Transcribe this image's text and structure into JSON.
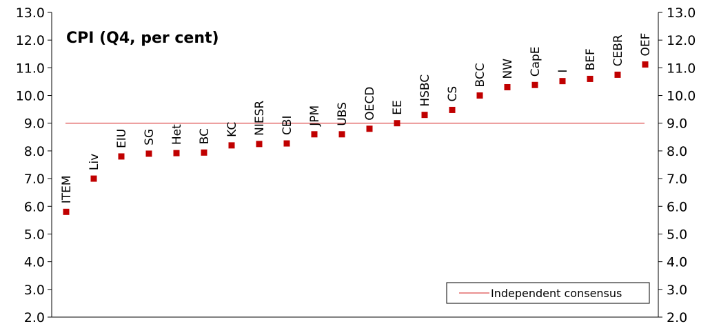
{
  "chart_data": {
    "type": "scatter",
    "title": "CPI (Q4, per cent)",
    "categories": [
      "ITEM",
      "Liv",
      "EIU",
      "SG",
      "Het",
      "BC",
      "KC",
      "NIESR",
      "CBI",
      "JPM",
      "UBS",
      "OECD",
      "EE",
      "HSBC",
      "CS",
      "BCC",
      "NW",
      "CapE",
      "I",
      "BEF",
      "CEBR",
      "OEF"
    ],
    "values": [
      5.8,
      7.0,
      7.8,
      7.9,
      7.92,
      7.94,
      8.2,
      8.25,
      8.27,
      8.6,
      8.6,
      8.8,
      9.0,
      9.3,
      9.48,
      10.0,
      10.3,
      10.38,
      10.52,
      10.6,
      10.75,
      11.12
    ],
    "ylim": [
      2.0,
      13.0
    ],
    "yticks": [
      "2.0",
      "3.0",
      "4.0",
      "5.0",
      "6.0",
      "7.0",
      "8.0",
      "9.0",
      "10.0",
      "11.0",
      "12.0",
      "13.0"
    ],
    "reference_line": {
      "name": "Independent consensus",
      "value": 9.0
    },
    "legend": "bottom-right",
    "grid": false,
    "colors": {
      "marker": "#c00000",
      "consensus": "#d62020",
      "axis": "#000000"
    }
  }
}
